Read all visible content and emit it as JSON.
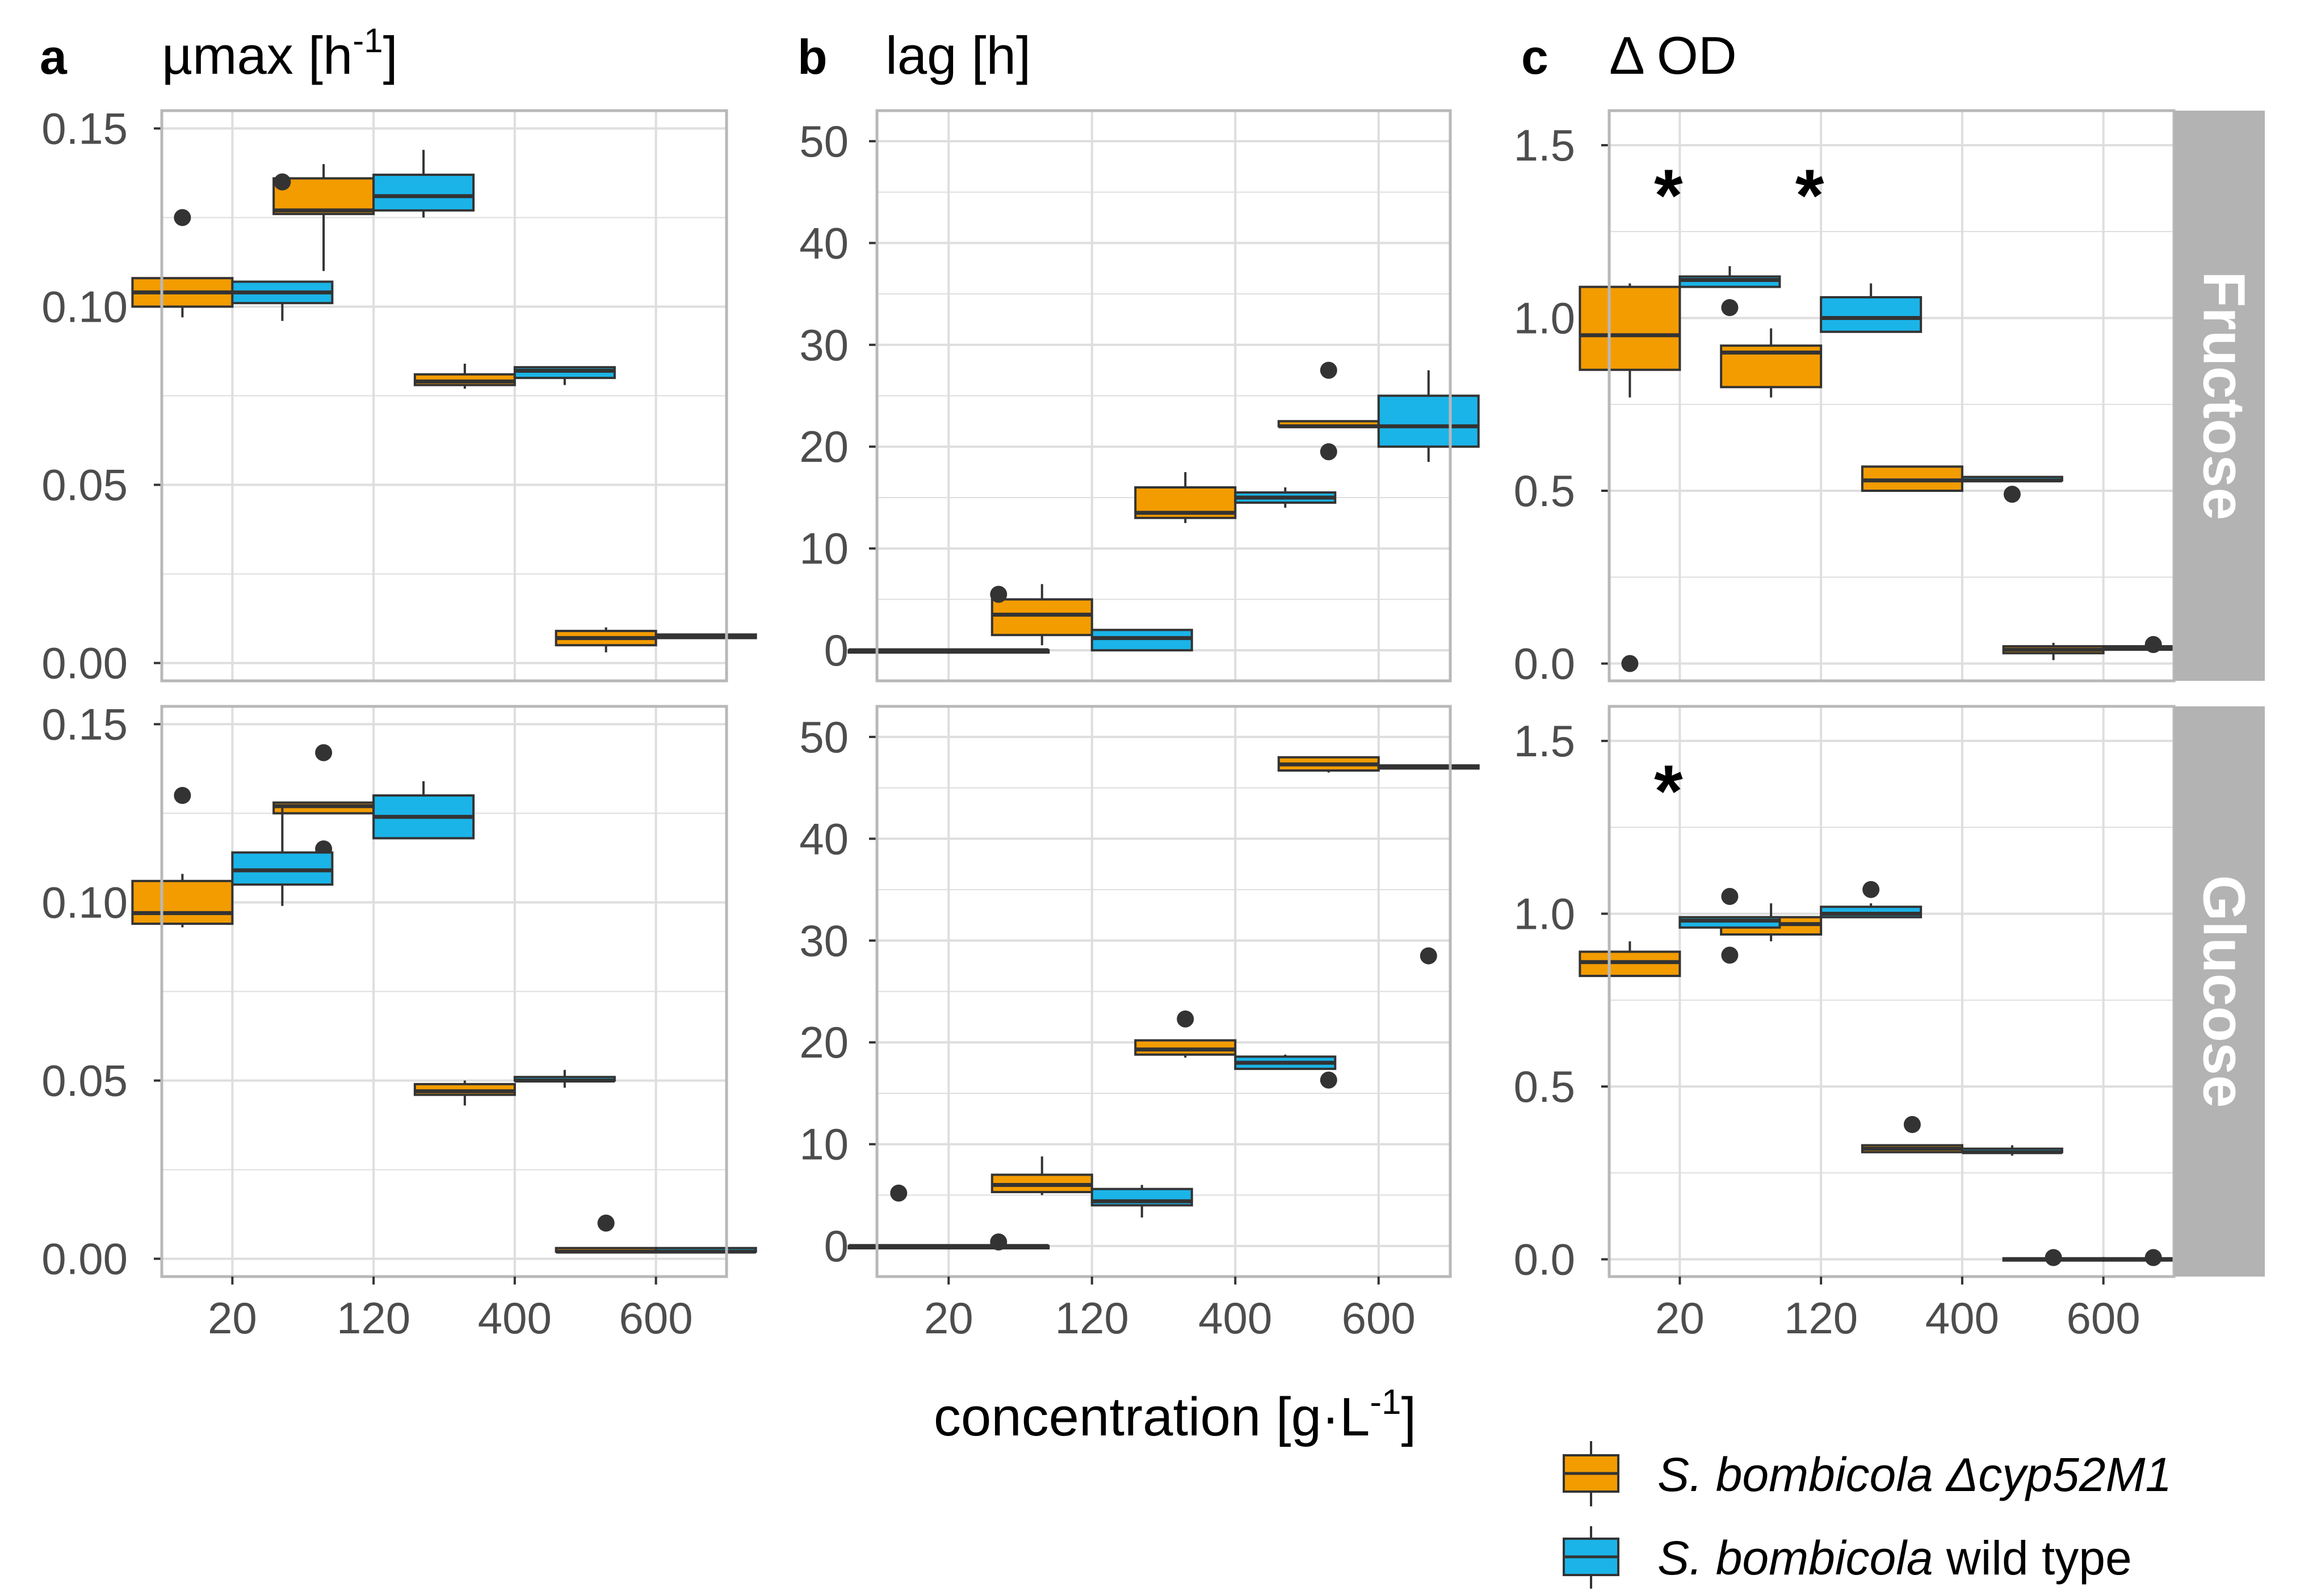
{
  "colors": {
    "mutant": "#F39C00",
    "wildtype": "#1BB4E8",
    "strip": "#B3B3B3",
    "grid": "#DEDEDE",
    "border": "#B8B8B8"
  },
  "x_categories": [
    "20",
    "120",
    "400",
    "600"
  ],
  "xlabel": {
    "text": "concentration [g·L",
    "sup": "-1",
    "close": "]"
  },
  "strips": [
    "Fructose",
    "Glucose"
  ],
  "legend": {
    "items": [
      {
        "key": "mutant",
        "species": "S.  bombicola",
        "suffix": " Δcyp52M1",
        "suffix_italic": true
      },
      {
        "key": "wildtype",
        "species": "S.  bombicola",
        "suffix": " wild type",
        "suffix_italic": false
      }
    ]
  },
  "chart_data": [
    {
      "id": "a",
      "type": "box",
      "letter": "a",
      "title": "µmax [h",
      "title_sup": "-1",
      "title_close": "]",
      "ylim": [
        -0.005,
        0.155
      ],
      "yticks": [
        "0.00",
        "0.05",
        "0.10",
        "0.15"
      ],
      "ytick_values": [
        0,
        0.05,
        0.1,
        0.15
      ],
      "facets": {
        "Fructose": {
          "mutant": [
            {
              "x": "20",
              "min": 0.097,
              "q1": 0.1,
              "median": 0.104,
              "q3": 0.108,
              "max": 0.108,
              "outliers": [
                0.125
              ]
            },
            {
              "x": "120",
              "min": 0.11,
              "q1": 0.126,
              "median": 0.127,
              "q3": 0.136,
              "max": 0.14,
              "outliers": []
            },
            {
              "x": "400",
              "min": 0.077,
              "q1": 0.078,
              "median": 0.079,
              "q3": 0.081,
              "max": 0.084,
              "outliers": []
            },
            {
              "x": "600",
              "min": 0.003,
              "q1": 0.005,
              "median": 0.007,
              "q3": 0.009,
              "max": 0.01,
              "outliers": []
            }
          ],
          "wildtype": [
            {
              "x": "20",
              "min": 0.096,
              "q1": 0.101,
              "median": 0.104,
              "q3": 0.107,
              "max": 0.107,
              "outliers": [
                0.135
              ]
            },
            {
              "x": "120",
              "min": 0.125,
              "q1": 0.127,
              "median": 0.131,
              "q3": 0.137,
              "max": 0.144,
              "outliers": []
            },
            {
              "x": "400",
              "min": 0.078,
              "q1": 0.08,
              "median": 0.082,
              "q3": 0.083,
              "max": 0.083,
              "outliers": []
            },
            {
              "x": "600",
              "min": 0.007,
              "q1": 0.007,
              "median": 0.0075,
              "q3": 0.008,
              "max": 0.008,
              "outliers": []
            }
          ]
        },
        "Glucose": {
          "mutant": [
            {
              "x": "20",
              "min": 0.093,
              "q1": 0.094,
              "median": 0.097,
              "q3": 0.106,
              "max": 0.108,
              "outliers": [
                0.13
              ]
            },
            {
              "x": "120",
              "min": 0.125,
              "q1": 0.125,
              "median": 0.127,
              "q3": 0.128,
              "max": 0.128,
              "outliers": [
                0.142,
                0.115
              ]
            },
            {
              "x": "400",
              "min": 0.043,
              "q1": 0.046,
              "median": 0.047,
              "q3": 0.049,
              "max": 0.05,
              "outliers": []
            },
            {
              "x": "600",
              "min": 0.002,
              "q1": 0.002,
              "median": 0.002,
              "q3": 0.003,
              "max": 0.003,
              "outliers": [
                0.01
              ]
            }
          ],
          "wildtype": [
            {
              "x": "20",
              "min": 0.099,
              "q1": 0.105,
              "median": 0.109,
              "q3": 0.114,
              "max": 0.127,
              "outliers": []
            },
            {
              "x": "120",
              "min": 0.118,
              "q1": 0.118,
              "median": 0.124,
              "q3": 0.13,
              "max": 0.134,
              "outliers": []
            },
            {
              "x": "400",
              "min": 0.048,
              "q1": 0.05,
              "median": 0.05,
              "q3": 0.051,
              "max": 0.053,
              "outliers": []
            },
            {
              "x": "600",
              "min": 0.002,
              "q1": 0.002,
              "median": 0.002,
              "q3": 0.003,
              "max": 0.003,
              "outliers": []
            }
          ]
        }
      },
      "annotations": []
    },
    {
      "id": "b",
      "type": "box",
      "letter": "b",
      "title": "lag [h]",
      "ylim": [
        -3,
        53
      ],
      "yticks": [
        "0",
        "10",
        "20",
        "30",
        "40",
        "50"
      ],
      "ytick_values": [
        0,
        10,
        20,
        30,
        40,
        50
      ],
      "facets": {
        "Fructose": {
          "mutant": [
            {
              "x": "20",
              "min": 0,
              "q1": 0,
              "median": 0,
              "q3": 0,
              "max": 0,
              "outliers": []
            },
            {
              "x": "120",
              "min": 0.5,
              "q1": 1.5,
              "median": 3.5,
              "q3": 5,
              "max": 6.5,
              "outliers": []
            },
            {
              "x": "400",
              "min": 12.5,
              "q1": 13,
              "median": 13.5,
              "q3": 16,
              "max": 17.5,
              "outliers": []
            },
            {
              "x": "600",
              "min": 22,
              "q1": 22,
              "median": 22,
              "q3": 22.5,
              "max": 22.5,
              "outliers": [
                27.5,
                19.5
              ]
            }
          ],
          "wildtype": [
            {
              "x": "20",
              "min": 0,
              "q1": 0,
              "median": 0,
              "q3": 0,
              "max": 0,
              "outliers": [
                5.5
              ]
            },
            {
              "x": "120",
              "min": 0,
              "q1": 0,
              "median": 1.2,
              "q3": 2,
              "max": 2,
              "outliers": []
            },
            {
              "x": "400",
              "min": 14,
              "q1": 14.5,
              "median": 15,
              "q3": 15.5,
              "max": 16,
              "outliers": []
            },
            {
              "x": "600",
              "min": 18.5,
              "q1": 20,
              "median": 22,
              "q3": 25,
              "max": 27.5,
              "outliers": []
            }
          ]
        },
        "Glucose": {
          "mutant": [
            {
              "x": "20",
              "min": 0,
              "q1": 0,
              "median": 0,
              "q3": 0,
              "max": 0,
              "outliers": [
                5.2
              ]
            },
            {
              "x": "120",
              "min": 5,
              "q1": 5.3,
              "median": 6,
              "q3": 7,
              "max": 8.8,
              "outliers": []
            },
            {
              "x": "400",
              "min": 18.5,
              "q1": 18.8,
              "median": 19.3,
              "q3": 20.2,
              "max": 20.2,
              "outliers": [
                22.3
              ]
            },
            {
              "x": "600",
              "min": 46.5,
              "q1": 46.7,
              "median": 47.3,
              "q3": 48,
              "max": 48,
              "outliers": [
                16.3
              ]
            }
          ],
          "wildtype": [
            {
              "x": "20",
              "min": 0,
              "q1": 0,
              "median": 0,
              "q3": 0,
              "max": 0,
              "outliers": [
                0.4
              ]
            },
            {
              "x": "120",
              "min": 2.8,
              "q1": 4,
              "median": 4.4,
              "q3": 5.6,
              "max": 6,
              "outliers": []
            },
            {
              "x": "400",
              "min": 17.3,
              "q1": 17.4,
              "median": 18,
              "q3": 18.6,
              "max": 18.8,
              "outliers": []
            },
            {
              "x": "600",
              "min": 46.8,
              "q1": 46.9,
              "median": 47,
              "q3": 47.2,
              "max": 47.3,
              "outliers": [
                28.5
              ]
            }
          ]
        }
      },
      "annotations": []
    },
    {
      "id": "c",
      "type": "box",
      "letter": "c",
      "title": "Δ OD",
      "ylim": [
        -0.05,
        1.6
      ],
      "yticks": [
        "0.0",
        "0.5",
        "1.0",
        "1.5"
      ],
      "ytick_values": [
        0,
        0.5,
        1.0,
        1.5
      ],
      "facets": {
        "Fructose": {
          "mutant": [
            {
              "x": "20",
              "min": 0.77,
              "q1": 0.85,
              "median": 0.95,
              "q3": 1.09,
              "max": 1.1,
              "outliers": [
                0.0
              ]
            },
            {
              "x": "120",
              "min": 0.77,
              "q1": 0.8,
              "median": 0.9,
              "q3": 0.92,
              "max": 0.97,
              "outliers": []
            },
            {
              "x": "400",
              "min": 0.5,
              "q1": 0.5,
              "median": 0.53,
              "q3": 0.57,
              "max": 0.57,
              "outliers": []
            },
            {
              "x": "600",
              "min": 0.01,
              "q1": 0.03,
              "median": 0.04,
              "q3": 0.05,
              "max": 0.06,
              "outliers": []
            }
          ],
          "wildtype": [
            {
              "x": "20",
              "min": 1.09,
              "q1": 1.09,
              "median": 1.11,
              "q3": 1.12,
              "max": 1.15,
              "outliers": [
                1.03
              ]
            },
            {
              "x": "120",
              "min": 0.96,
              "q1": 0.96,
              "median": 1.0,
              "q3": 1.06,
              "max": 1.1,
              "outliers": []
            },
            {
              "x": "400",
              "min": 0.53,
              "q1": 0.53,
              "median": 0.53,
              "q3": 0.54,
              "max": 0.54,
              "outliers": [
                0.49
              ]
            },
            {
              "x": "600",
              "min": 0.04,
              "q1": 0.04,
              "median": 0.045,
              "q3": 0.05,
              "max": 0.05,
              "outliers": [
                0.055
              ]
            }
          ]
        },
        "Glucose": {
          "mutant": [
            {
              "x": "20",
              "min": 0.82,
              "q1": 0.82,
              "median": 0.86,
              "q3": 0.89,
              "max": 0.92,
              "outliers": []
            },
            {
              "x": "120",
              "min": 0.92,
              "q1": 0.94,
              "median": 0.97,
              "q3": 0.99,
              "max": 1.03,
              "outliers": []
            },
            {
              "x": "400",
              "min": 0.31,
              "q1": 0.31,
              "median": 0.32,
              "q3": 0.33,
              "max": 0.33,
              "outliers": [
                0.39
              ]
            },
            {
              "x": "600",
              "min": 0.0,
              "q1": 0.0,
              "median": 0.0,
              "q3": 0.003,
              "max": 0.003,
              "outliers": [
                0.005
              ]
            }
          ],
          "wildtype": [
            {
              "x": "20",
              "min": 0.96,
              "q1": 0.96,
              "median": 0.98,
              "q3": 0.99,
              "max": 0.99,
              "outliers": [
                1.05,
                0.88
              ]
            },
            {
              "x": "120",
              "min": 0.99,
              "q1": 0.99,
              "median": 1.0,
              "q3": 1.02,
              "max": 1.03,
              "outliers": [
                1.07
              ]
            },
            {
              "x": "400",
              "min": 0.3,
              "q1": 0.31,
              "median": 0.31,
              "q3": 0.32,
              "max": 0.33,
              "outliers": []
            },
            {
              "x": "600",
              "min": 0.0,
              "q1": 0.0,
              "median": 0.0,
              "q3": 0.003,
              "max": 0.003,
              "outliers": [
                0.005
              ]
            }
          ]
        }
      },
      "annotations": [
        {
          "facet": "Fructose",
          "x": "20",
          "text": "*",
          "y": 1.38
        },
        {
          "facet": "Fructose",
          "x": "120",
          "text": "*",
          "y": 1.38
        },
        {
          "facet": "Glucose",
          "x": "20",
          "text": "*",
          "y": 1.38
        }
      ]
    }
  ]
}
